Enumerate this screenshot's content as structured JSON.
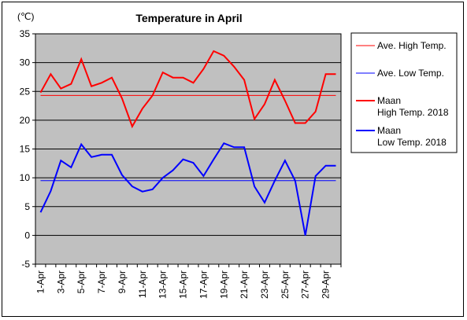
{
  "chart_data": {
    "type": "line",
    "title": "Temperature in April",
    "unit_label": "(℃)",
    "ylim": [
      -5,
      35
    ],
    "yticks": [
      -5,
      0,
      5,
      10,
      15,
      20,
      25,
      30,
      35
    ],
    "x": [
      1,
      2,
      3,
      4,
      5,
      6,
      7,
      8,
      9,
      10,
      11,
      12,
      13,
      14,
      15,
      16,
      17,
      18,
      19,
      20,
      21,
      22,
      23,
      24,
      25,
      26,
      27,
      28,
      29,
      30
    ],
    "x_tick_labels": [
      "1-Apr",
      "3-Apr",
      "5-Apr",
      "7-Apr",
      "9-Apr",
      "11-Apr",
      "13-Apr",
      "15-Apr",
      "17-Apr",
      "19-Apr",
      "21-Apr",
      "23-Apr",
      "25-Apr",
      "27-Apr",
      "29-Apr"
    ],
    "grid": true,
    "legend_position": "right",
    "plot_background": "#c0c0c0",
    "series": [
      {
        "name": "Ave. High Temp.",
        "color": "#ff0000",
        "width": 1,
        "values": [
          24.3,
          24.3,
          24.3,
          24.3,
          24.3,
          24.3,
          24.3,
          24.3,
          24.3,
          24.3,
          24.3,
          24.3,
          24.3,
          24.3,
          24.3,
          24.3,
          24.3,
          24.3,
          24.3,
          24.3,
          24.3,
          24.3,
          24.3,
          24.3,
          24.3,
          24.3,
          24.3,
          24.3,
          24.3,
          24.3
        ]
      },
      {
        "name": "Ave. Low Temp.",
        "color": "#0000ff",
        "width": 1,
        "values": [
          9.5,
          9.5,
          9.5,
          9.5,
          9.5,
          9.5,
          9.5,
          9.5,
          9.5,
          9.5,
          9.5,
          9.5,
          9.5,
          9.5,
          9.5,
          9.5,
          9.5,
          9.5,
          9.5,
          9.5,
          9.5,
          9.5,
          9.5,
          9.5,
          9.5,
          9.5,
          9.5,
          9.5,
          9.5,
          9.5
        ]
      },
      {
        "name": "Maan High Temp. 2018",
        "label_lines": [
          "Maan",
          "High Temp. 2018"
        ],
        "color": "#ff0000",
        "width": 2,
        "values": [
          24.8,
          28.0,
          25.5,
          26.3,
          30.6,
          25.9,
          26.5,
          27.4,
          23.8,
          18.9,
          22.0,
          24.3,
          28.3,
          27.4,
          27.4,
          26.5,
          28.9,
          32.0,
          31.2,
          29.3,
          27.0,
          20.2,
          22.8,
          27.0,
          23.4,
          19.5,
          19.5,
          21.5,
          28.0,
          28.0
        ]
      },
      {
        "name": "Maan Low Temp. 2018",
        "label_lines": [
          "Maan",
          "Low Temp. 2018"
        ],
        "color": "#0000ff",
        "width": 2,
        "values": [
          4.0,
          7.7,
          13.0,
          11.8,
          15.8,
          13.6,
          14.0,
          14.0,
          10.5,
          8.5,
          7.6,
          8.0,
          10.0,
          11.3,
          13.2,
          12.6,
          10.3,
          13.2,
          16.0,
          15.3,
          15.3,
          8.5,
          5.7,
          9.5,
          13.0,
          9.5,
          0.0,
          10.3,
          12.1,
          12.1
        ]
      }
    ]
  }
}
